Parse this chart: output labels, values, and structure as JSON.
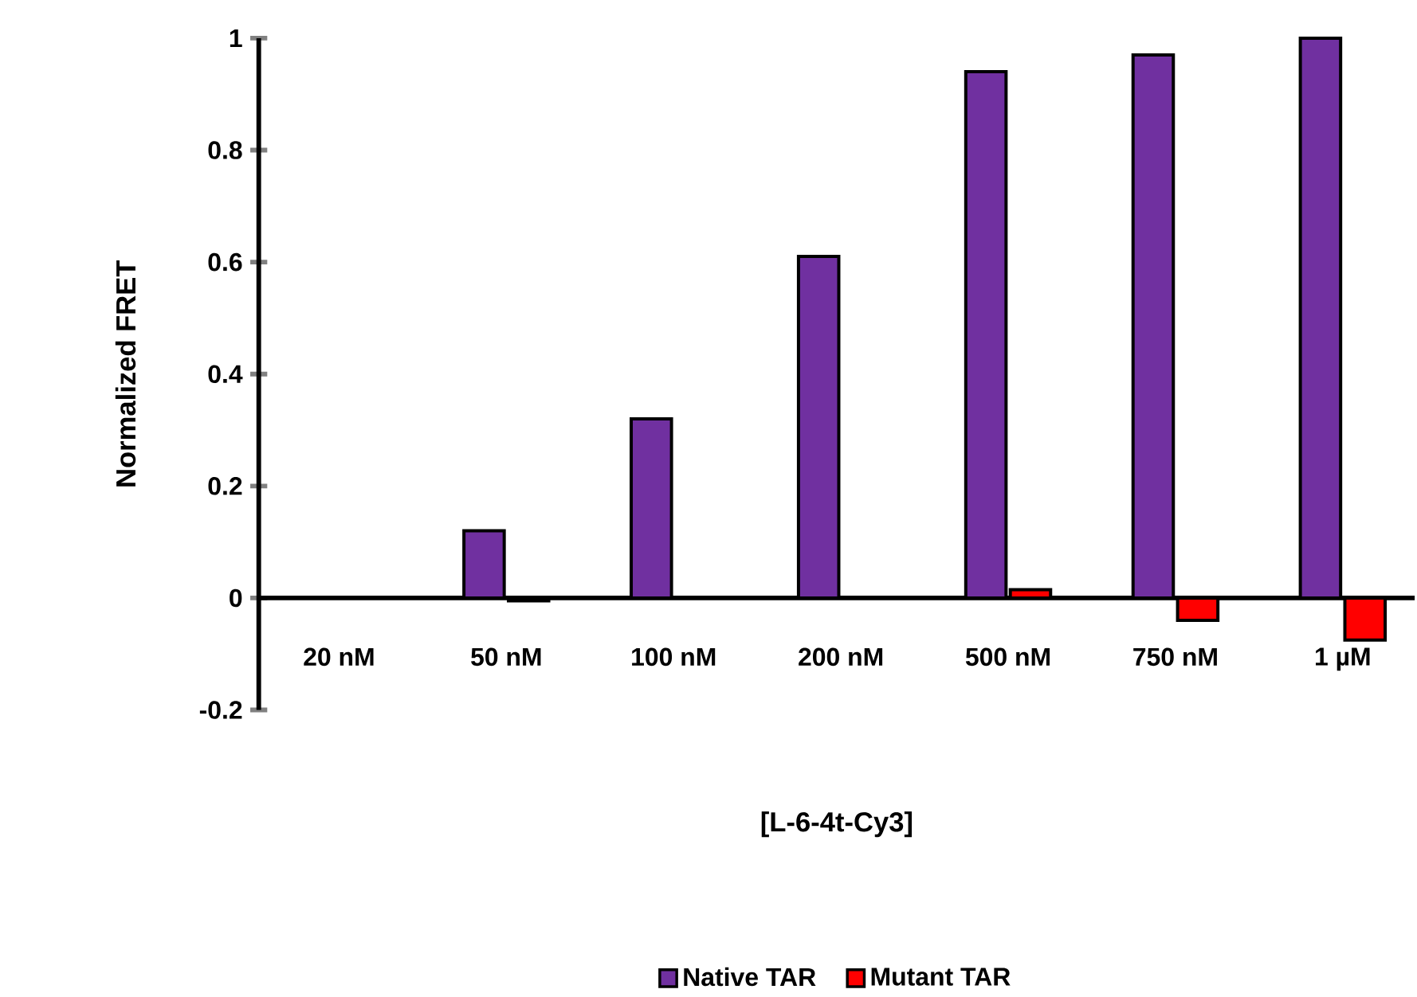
{
  "chart_data": {
    "type": "bar",
    "xlabel": "[L-6-4t-Cy3]",
    "ylabel": "Normalized FRET",
    "categories": [
      "20 nM",
      "50 nM",
      "100 nM",
      "200 nM",
      "500 nM",
      "750 nM",
      "1 µM"
    ],
    "series": [
      {
        "name": "Native TAR",
        "color": "#7030a0",
        "values": [
          null,
          0.12,
          0.32,
          0.61,
          0.94,
          0.97,
          1.0
        ]
      },
      {
        "name": "Mutant TAR",
        "color": "#ff0000",
        "values": [
          null,
          -0.005,
          null,
          null,
          0.015,
          -0.04,
          -0.075
        ]
      }
    ],
    "ylim": [
      -0.2,
      1
    ],
    "yticks": [
      -0.2,
      0,
      0.2,
      0.4,
      0.6,
      0.8,
      1
    ],
    "legend": "bottom"
  }
}
